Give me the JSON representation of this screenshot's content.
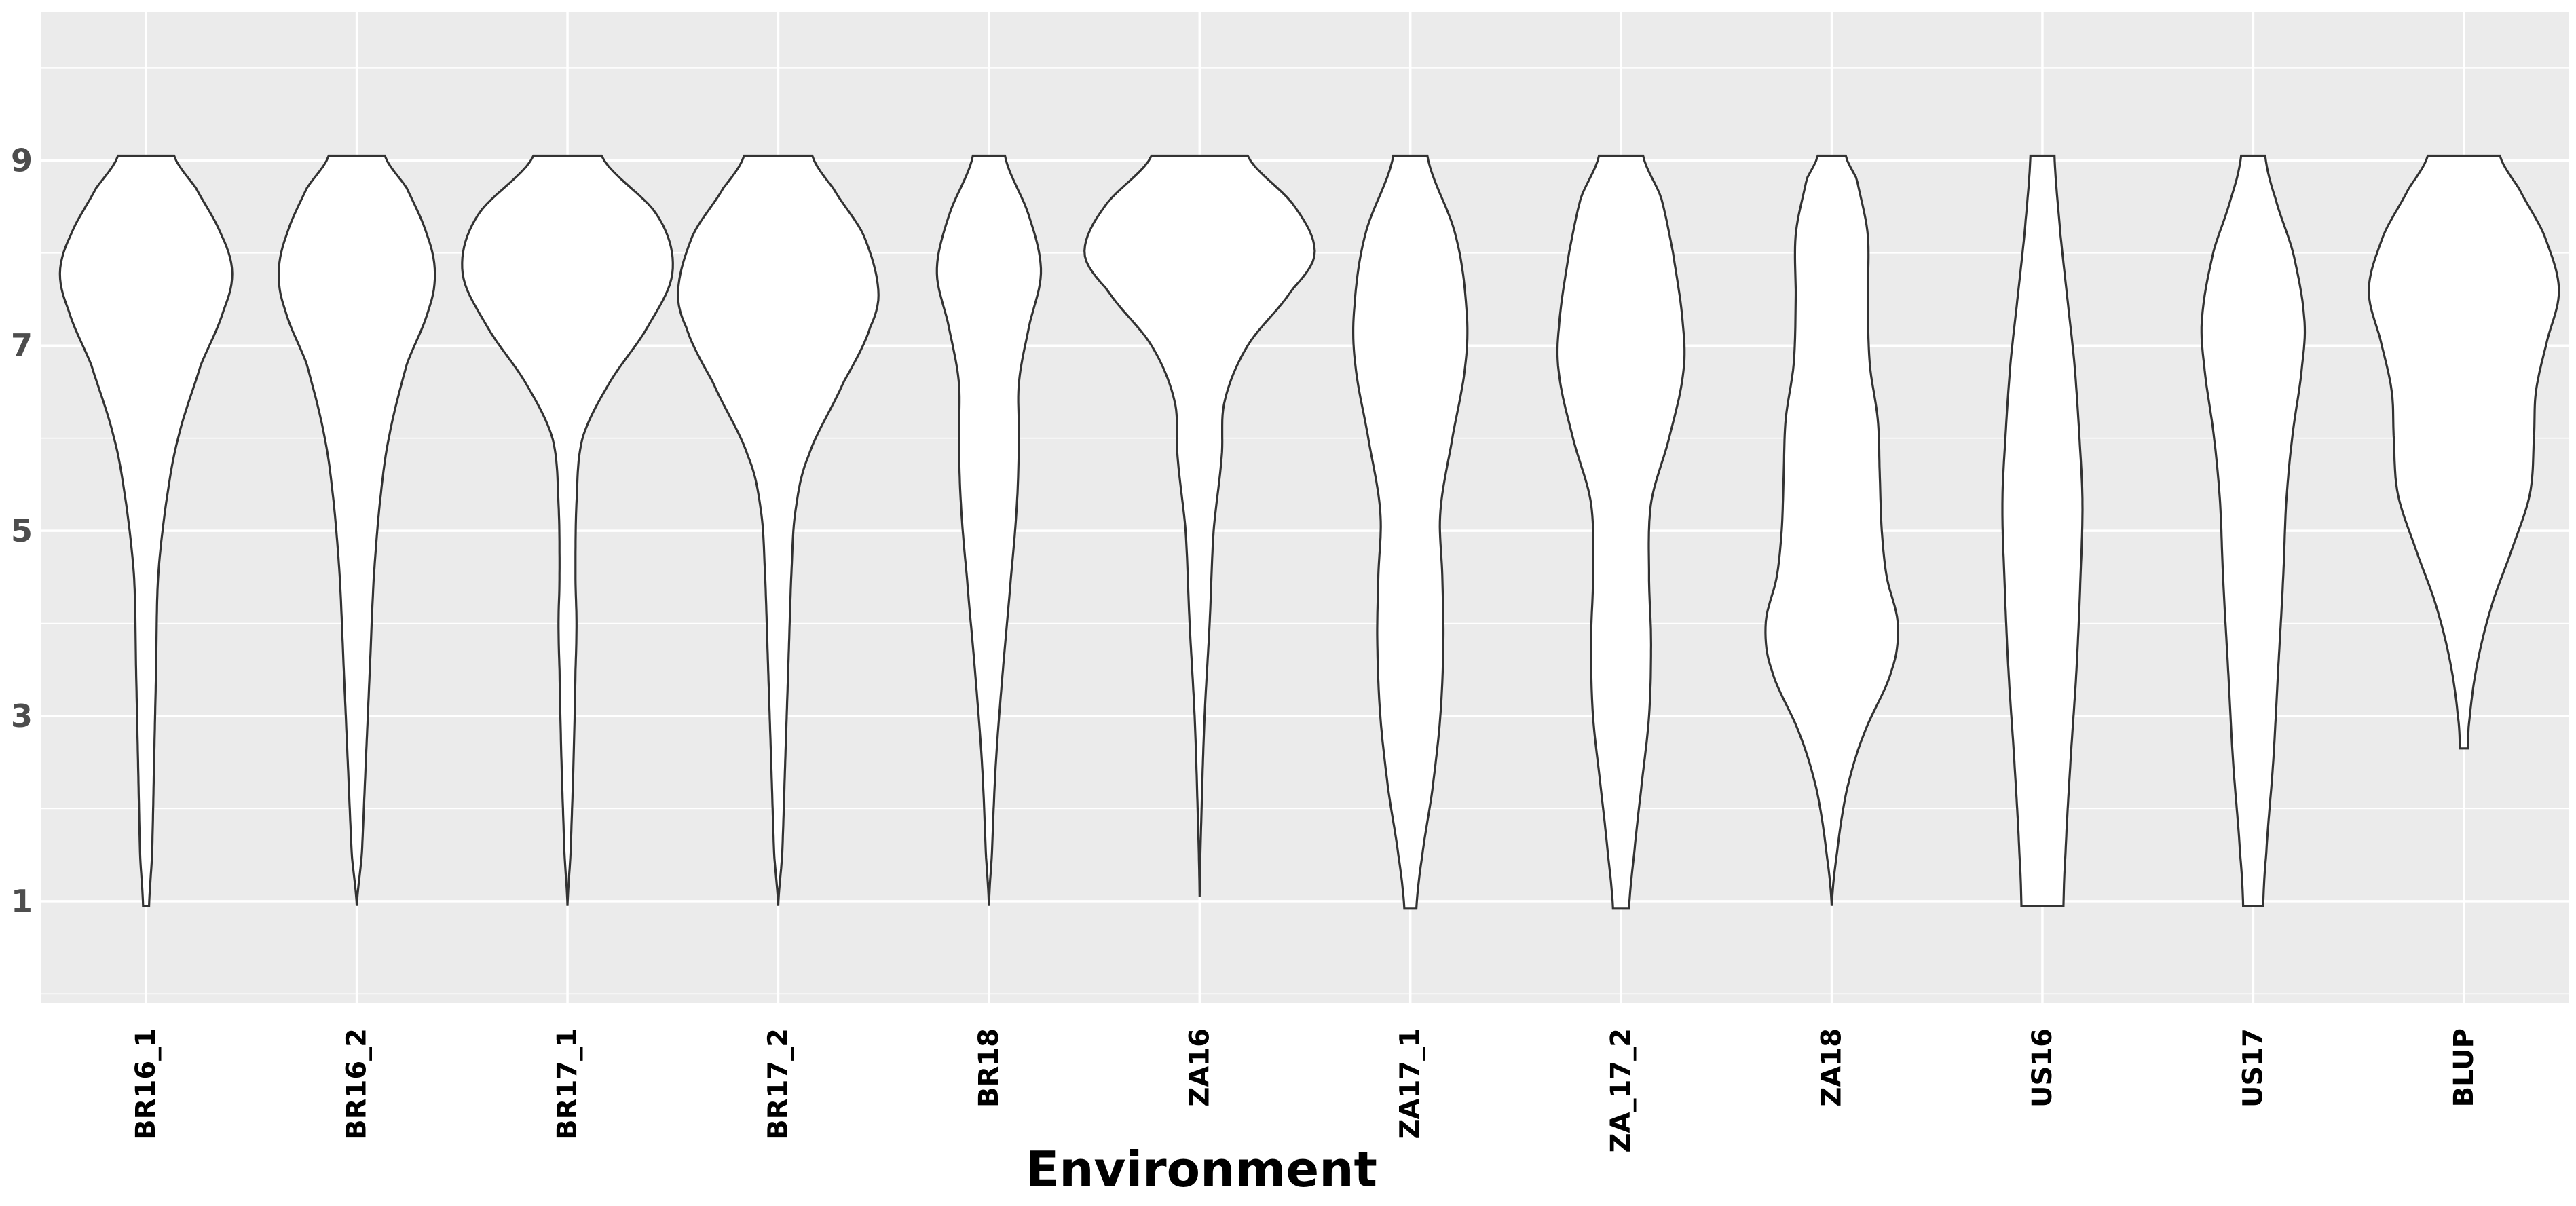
{
  "chart_data": {
    "type": "violin",
    "title": "",
    "xlabel": "Environment",
    "ylabel": "",
    "ylim": [
      -0.1,
      10.6
    ],
    "yticks": [
      1,
      3,
      5,
      7,
      9
    ],
    "grid": true,
    "legend": "none",
    "colors": {
      "panel": "#ebebeb",
      "grid": "#ffffff",
      "violin_fill": "#ffffff",
      "violin_stroke": "#333333",
      "tick_y": "#4d4d4d",
      "tick_x": "#000000"
    },
    "categories": [
      "BR16_1",
      "BR16_2",
      "BR17_1",
      "BR17_2",
      "BR18",
      "ZA16",
      "ZA17_1",
      "ZA_17_2",
      "ZA18",
      "US16",
      "US17",
      "BLUP"
    ],
    "violins": [
      {
        "category": "BR16_1",
        "min": 0.95,
        "max": 9.05,
        "profile": [
          [
            0.95,
            0.03
          ],
          [
            1.5,
            0.06
          ],
          [
            2.5,
            0.08
          ],
          [
            3.5,
            0.1
          ],
          [
            4.5,
            0.12
          ],
          [
            5.3,
            0.2
          ],
          [
            6.0,
            0.32
          ],
          [
            6.8,
            0.55
          ],
          [
            7.4,
            0.78
          ],
          [
            7.8,
            0.86
          ],
          [
            8.2,
            0.75
          ],
          [
            8.7,
            0.5
          ],
          [
            9.05,
            0.28
          ]
        ]
      },
      {
        "category": "BR16_2",
        "min": 0.95,
        "max": 9.05,
        "profile": [
          [
            0.95,
            0.0
          ],
          [
            1.5,
            0.05
          ],
          [
            2.5,
            0.09
          ],
          [
            3.5,
            0.13
          ],
          [
            4.5,
            0.17
          ],
          [
            5.3,
            0.23
          ],
          [
            6.0,
            0.32
          ],
          [
            6.8,
            0.5
          ],
          [
            7.4,
            0.72
          ],
          [
            7.8,
            0.78
          ],
          [
            8.2,
            0.7
          ],
          [
            8.7,
            0.5
          ],
          [
            9.05,
            0.28
          ]
        ]
      },
      {
        "category": "BR17_1",
        "min": 0.95,
        "max": 9.05,
        "profile": [
          [
            0.95,
            0.0
          ],
          [
            1.5,
            0.03
          ],
          [
            2.5,
            0.06
          ],
          [
            3.5,
            0.08
          ],
          [
            4.0,
            0.09
          ],
          [
            4.5,
            0.08
          ],
          [
            5.3,
            0.09
          ],
          [
            6.0,
            0.15
          ],
          [
            6.6,
            0.42
          ],
          [
            7.2,
            0.8
          ],
          [
            7.8,
            1.05
          ],
          [
            8.4,
            0.9
          ],
          [
            9.05,
            0.34
          ]
        ]
      },
      {
        "category": "BR17_2",
        "min": 0.95,
        "max": 9.05,
        "profile": [
          [
            0.95,
            0.0
          ],
          [
            1.5,
            0.04
          ],
          [
            2.5,
            0.07
          ],
          [
            3.5,
            0.1
          ],
          [
            4.5,
            0.13
          ],
          [
            5.2,
            0.17
          ],
          [
            5.8,
            0.3
          ],
          [
            6.6,
            0.65
          ],
          [
            7.2,
            0.92
          ],
          [
            7.6,
            1.0
          ],
          [
            8.2,
            0.85
          ],
          [
            8.7,
            0.55
          ],
          [
            9.05,
            0.34
          ]
        ]
      },
      {
        "category": "BR18",
        "min": 0.95,
        "max": 9.05,
        "profile": [
          [
            0.95,
            0.0
          ],
          [
            1.5,
            0.03
          ],
          [
            2.5,
            0.07
          ],
          [
            3.5,
            0.14
          ],
          [
            4.5,
            0.22
          ],
          [
            5.3,
            0.28
          ],
          [
            6.0,
            0.3
          ],
          [
            6.6,
            0.3
          ],
          [
            7.2,
            0.4
          ],
          [
            7.8,
            0.52
          ],
          [
            8.4,
            0.4
          ],
          [
            9.05,
            0.16
          ]
        ]
      },
      {
        "category": "ZA16",
        "min": 1.05,
        "max": 9.05,
        "profile": [
          [
            1.05,
            0.0
          ],
          [
            2.0,
            0.02
          ],
          [
            3.0,
            0.05
          ],
          [
            4.0,
            0.1
          ],
          [
            5.0,
            0.14
          ],
          [
            5.8,
            0.22
          ],
          [
            6.4,
            0.25
          ],
          [
            7.0,
            0.48
          ],
          [
            7.6,
            0.92
          ],
          [
            8.0,
            1.15
          ],
          [
            8.5,
            0.95
          ],
          [
            9.05,
            0.48
          ]
        ]
      },
      {
        "category": "ZA17_1",
        "min": 0.92,
        "max": 9.05,
        "profile": [
          [
            0.92,
            0.06
          ],
          [
            1.5,
            0.12
          ],
          [
            2.2,
            0.22
          ],
          [
            3.0,
            0.3
          ],
          [
            3.8,
            0.33
          ],
          [
            4.5,
            0.32
          ],
          [
            5.2,
            0.3
          ],
          [
            6.0,
            0.42
          ],
          [
            6.8,
            0.55
          ],
          [
            7.4,
            0.56
          ],
          [
            8.2,
            0.45
          ],
          [
            9.05,
            0.17
          ]
        ]
      },
      {
        "category": "ZA_17_2",
        "min": 0.92,
        "max": 9.05,
        "profile": [
          [
            0.92,
            0.08
          ],
          [
            1.5,
            0.13
          ],
          [
            2.2,
            0.2
          ],
          [
            3.0,
            0.28
          ],
          [
            3.8,
            0.3
          ],
          [
            4.5,
            0.28
          ],
          [
            5.3,
            0.3
          ],
          [
            6.0,
            0.48
          ],
          [
            6.7,
            0.62
          ],
          [
            7.2,
            0.62
          ],
          [
            8.0,
            0.52
          ],
          [
            8.6,
            0.4
          ],
          [
            9.05,
            0.22
          ]
        ]
      },
      {
        "category": "ZA18",
        "min": 0.95,
        "max": 9.05,
        "profile": [
          [
            0.95,
            0.0
          ],
          [
            1.5,
            0.05
          ],
          [
            2.2,
            0.15
          ],
          [
            2.8,
            0.32
          ],
          [
            3.5,
            0.6
          ],
          [
            4.0,
            0.66
          ],
          [
            4.5,
            0.55
          ],
          [
            5.0,
            0.5
          ],
          [
            5.6,
            0.48
          ],
          [
            6.2,
            0.46
          ],
          [
            6.8,
            0.38
          ],
          [
            7.5,
            0.36
          ],
          [
            8.2,
            0.36
          ],
          [
            8.8,
            0.25
          ],
          [
            9.05,
            0.14
          ]
        ]
      },
      {
        "category": "US16",
        "min": 0.95,
        "max": 9.05,
        "profile": [
          [
            0.95,
            0.21
          ],
          [
            1.5,
            0.23
          ],
          [
            2.5,
            0.28
          ],
          [
            3.5,
            0.34
          ],
          [
            4.5,
            0.38
          ],
          [
            5.3,
            0.4
          ],
          [
            6.0,
            0.37
          ],
          [
            6.8,
            0.32
          ],
          [
            7.5,
            0.25
          ],
          [
            8.2,
            0.18
          ],
          [
            9.05,
            0.12
          ]
        ]
      },
      {
        "category": "US17",
        "min": 0.95,
        "max": 9.05,
        "profile": [
          [
            0.95,
            0.1
          ],
          [
            1.5,
            0.13
          ],
          [
            2.5,
            0.2
          ],
          [
            3.5,
            0.25
          ],
          [
            4.5,
            0.3
          ],
          [
            5.3,
            0.33
          ],
          [
            6.0,
            0.39
          ],
          [
            6.8,
            0.49
          ],
          [
            7.3,
            0.51
          ],
          [
            8.0,
            0.4
          ],
          [
            8.6,
            0.22
          ],
          [
            9.05,
            0.12
          ]
        ]
      },
      {
        "category": "BLUP",
        "min": 2.65,
        "max": 9.05,
        "profile": [
          [
            2.65,
            0.04
          ],
          [
            3.0,
            0.06
          ],
          [
            3.6,
            0.14
          ],
          [
            4.2,
            0.28
          ],
          [
            4.8,
            0.48
          ],
          [
            5.4,
            0.66
          ],
          [
            6.0,
            0.7
          ],
          [
            6.5,
            0.72
          ],
          [
            7.0,
            0.82
          ],
          [
            7.6,
            0.95
          ],
          [
            8.2,
            0.8
          ],
          [
            8.7,
            0.55
          ],
          [
            9.05,
            0.36
          ]
        ]
      }
    ]
  }
}
